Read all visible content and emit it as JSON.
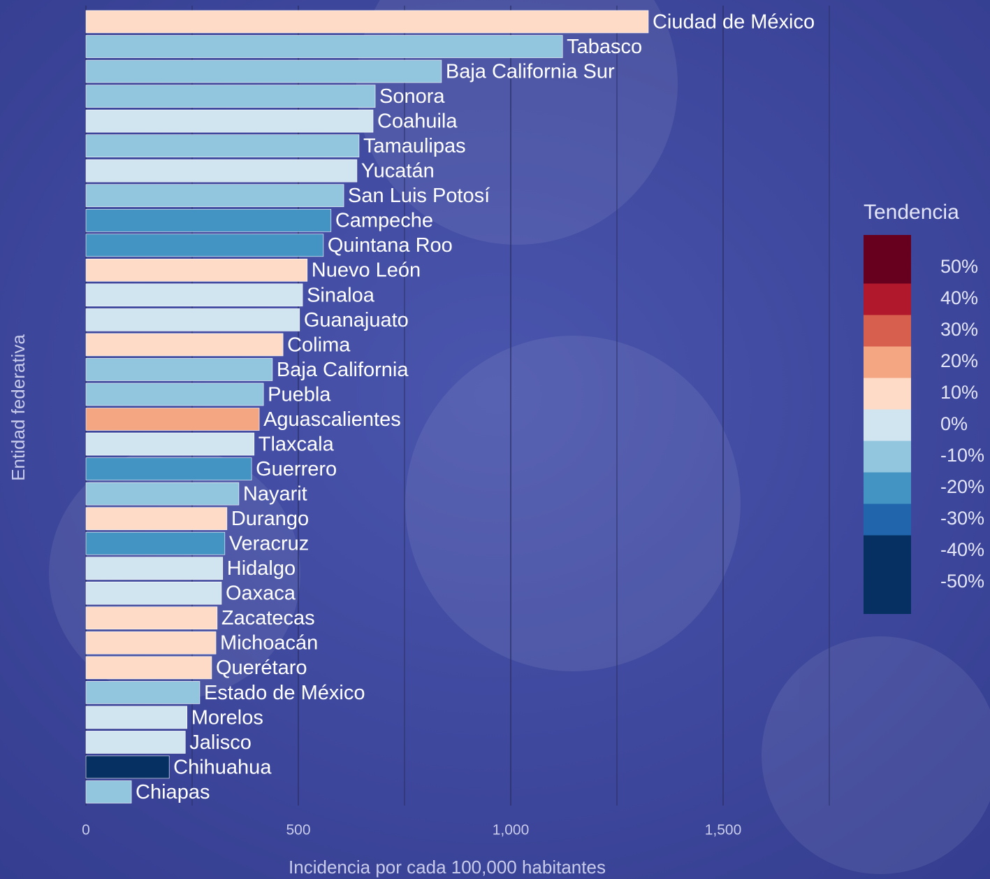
{
  "chart_data": {
    "type": "bar",
    "orientation": "horizontal",
    "x_label": "Incidencia por cada 100,000 habitantes",
    "y_label": "Entidad federativa",
    "categories": [
      "Ciudad de México",
      "Tabasco",
      "Baja California Sur",
      "Sonora",
      "Coahuila",
      "Tamaulipas",
      "Yucatán",
      "San Luis Potosí",
      "Campeche",
      "Quintana Roo",
      "Nuevo León",
      "Sinaloa",
      "Guanajuato",
      "Colima",
      "Baja California",
      "Puebla",
      "Aguascalientes",
      "Tlaxcala",
      "Guerrero",
      "Nayarit",
      "Durango",
      "Veracruz",
      "Hidalgo",
      "Oaxaca",
      "Zacatecas",
      "Michoacán",
      "Querétaro",
      "Estado de México",
      "Morelos",
      "Jalisco",
      "Chihuahua",
      "Chiapas"
    ],
    "values": [
      1324,
      1122,
      837,
      681,
      676,
      643,
      638,
      607,
      577,
      559,
      521,
      510,
      503,
      464,
      439,
      418,
      408,
      396,
      390,
      360,
      332,
      327,
      322,
      319,
      309,
      306,
      296,
      268,
      238,
      234,
      196,
      107
    ],
    "colors": [
      "#fddbc7",
      "#92c5de",
      "#92c5de",
      "#92c5de",
      "#d1e5f0",
      "#92c5de",
      "#d1e5f0",
      "#92c5de",
      "#4393c3",
      "#4393c3",
      "#fddbc7",
      "#d1e5f0",
      "#d1e5f0",
      "#fddbc7",
      "#92c5de",
      "#92c5de",
      "#f4a582",
      "#d1e5f0",
      "#4393c3",
      "#92c5de",
      "#fddbc7",
      "#4393c3",
      "#d1e5f0",
      "#d1e5f0",
      "#fddbc7",
      "#fddbc7",
      "#fddbc7",
      "#92c5de",
      "#d1e5f0",
      "#d1e5f0",
      "#053061",
      "#92c5de"
    ],
    "xlim": [
      0,
      1800
    ],
    "xticks": [
      0,
      500,
      {
        "value": 1000,
        "label": "1,000"
      },
      {
        "value": 1500,
        "label": "1,500"
      }
    ],
    "x_minor_grid": [
      250,
      750,
      1250,
      1750
    ],
    "grid": true,
    "legend": {
      "title": "Tendencia",
      "position": "right",
      "items": [
        {
          "value": 50,
          "label": "50%",
          "color": "#67001f"
        },
        {
          "value": 40,
          "label": "40%",
          "color": "#b2182b"
        },
        {
          "value": 30,
          "label": "30%",
          "color": "#d6604d"
        },
        {
          "value": 20,
          "label": "20%",
          "color": "#f4a582"
        },
        {
          "value": 10,
          "label": "10%",
          "color": "#fddbc7"
        },
        {
          "value": 0,
          "label": "0%",
          "color": "#d1e5f0"
        },
        {
          "value": -10,
          "label": "-10%",
          "color": "#92c5de"
        },
        {
          "value": -20,
          "label": "-20%",
          "color": "#4393c3"
        },
        {
          "value": -30,
          "label": "-30%",
          "color": "#2166ac"
        },
        {
          "value": -40,
          "label": "-40%",
          "color": "#053061"
        },
        {
          "value": -50,
          "label": "-50%",
          "color": "#053061"
        }
      ]
    }
  }
}
